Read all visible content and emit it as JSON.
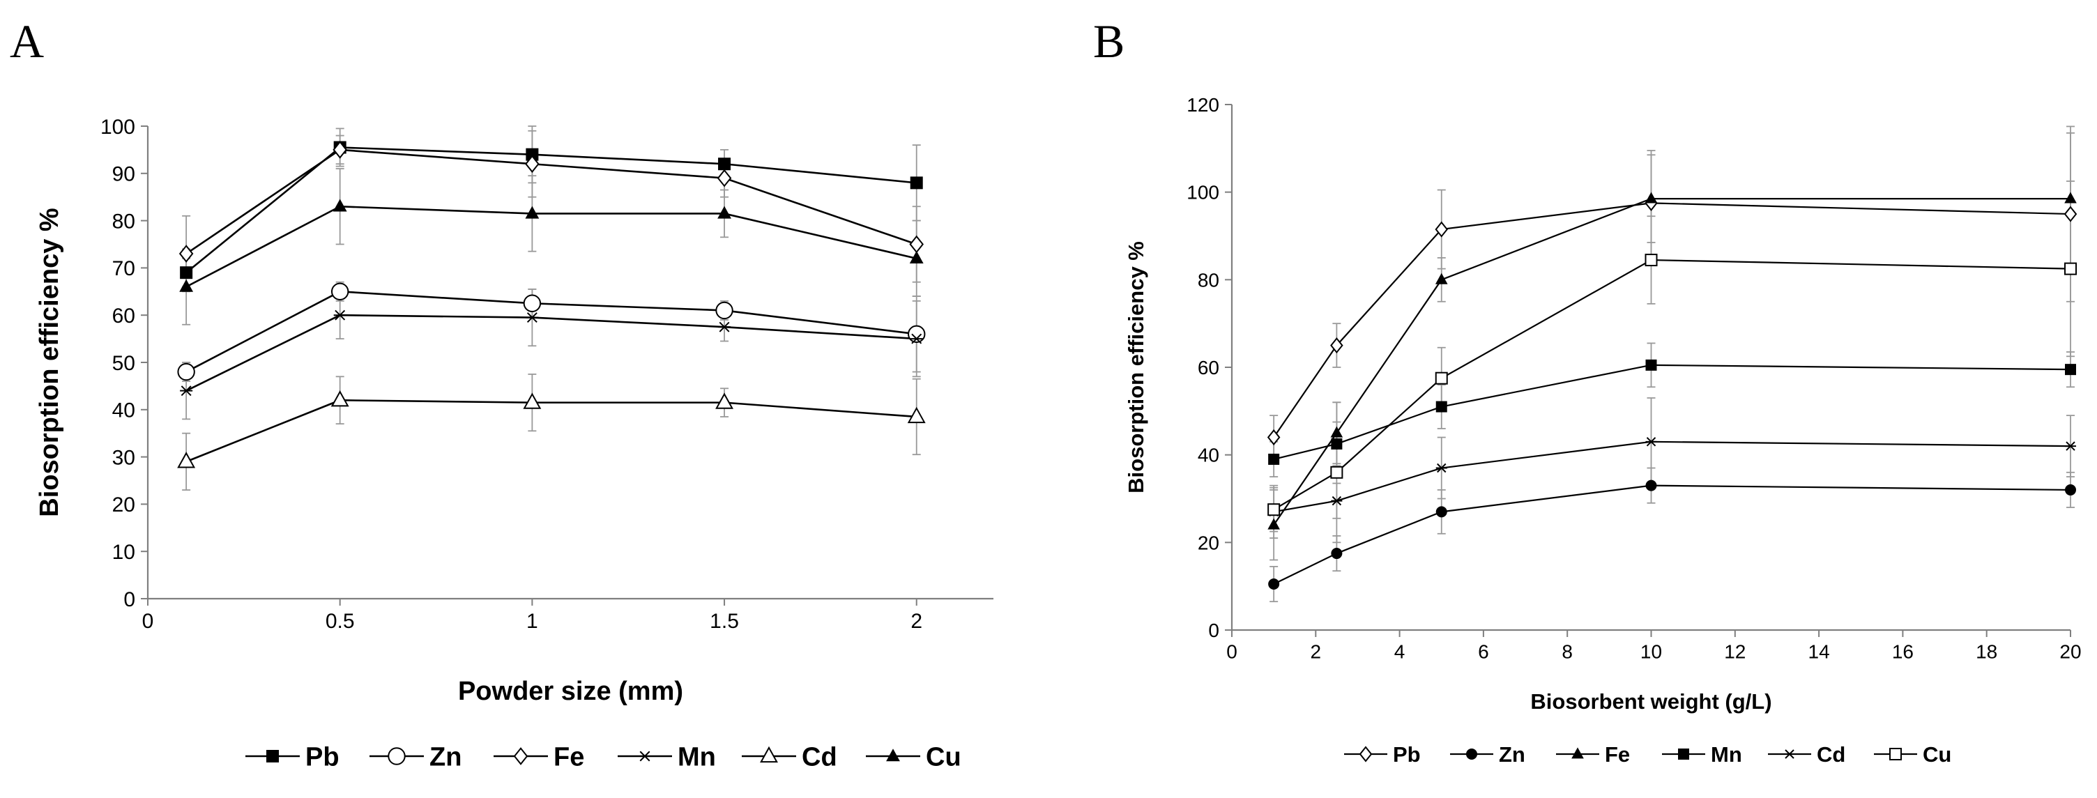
{
  "figure": {
    "panel_a_label": "A",
    "panel_b_label": "B"
  },
  "chart_data": [
    {
      "type": "line",
      "panel": "A",
      "xlabel": "Powder size (mm)",
      "ylabel": "Biosorption  efficiency %",
      "xlim": [
        0,
        2.2
      ],
      "ylim": [
        0,
        100
      ],
      "xticks": [
        0,
        0.5,
        1,
        1.5,
        2
      ],
      "xtick_labels": [
        "0",
        "0.5",
        "1",
        "1.5",
        "2"
      ],
      "yticks": [
        0,
        10,
        20,
        30,
        40,
        50,
        60,
        70,
        80,
        90,
        100
      ],
      "ytick_labels": [
        "0",
        "10",
        "20",
        "30",
        "40",
        "50",
        "60",
        "70",
        "80",
        "90",
        "100"
      ],
      "grid": false,
      "legend_position": "bottom",
      "x": [
        0.1,
        0.5,
        1,
        1.5,
        2
      ],
      "series": [
        {
          "name": "Pb",
          "marker": "square-filled",
          "values": [
            69,
            95.5,
            94,
            92,
            88
          ],
          "errors": [
            3,
            4,
            6,
            3,
            8
          ]
        },
        {
          "name": "Zn",
          "marker": "circle-open",
          "values": [
            48,
            65,
            62.5,
            61,
            56
          ],
          "errors": [
            2,
            2,
            3,
            2,
            8
          ]
        },
        {
          "name": "Fe",
          "marker": "diamond-open",
          "values": [
            73,
            95,
            92,
            89,
            75
          ],
          "errors": [
            8,
            3,
            7,
            4,
            8
          ]
        },
        {
          "name": "Mn",
          "marker": "star",
          "values": [
            44,
            60,
            59.5,
            57.5,
            55
          ],
          "errors": [
            6,
            5,
            6,
            3,
            8
          ]
        },
        {
          "name": "Cd",
          "marker": "triangle-open",
          "values": [
            29,
            42,
            41.5,
            41.5,
            38.5
          ],
          "errors": [
            6,
            5,
            6,
            3,
            8
          ]
        },
        {
          "name": "Cu",
          "marker": "triangle-filled",
          "values": [
            66,
            83,
            81.5,
            81.5,
            72
          ],
          "errors": [
            8,
            8,
            8,
            5,
            8
          ]
        }
      ]
    },
    {
      "type": "line",
      "panel": "B",
      "xlabel": "Biosorbent weight (g/L)",
      "ylabel": "Biosorption efficiency %",
      "xlim": [
        0,
        20
      ],
      "ylim": [
        0,
        120
      ],
      "xticks": [
        0,
        2,
        4,
        6,
        8,
        10,
        12,
        14,
        16,
        18,
        20
      ],
      "xtick_labels": [
        "0",
        "2",
        "4",
        "6",
        "8",
        "10",
        "12",
        "14",
        "16",
        "18",
        "20"
      ],
      "yticks": [
        0,
        20,
        40,
        60,
        80,
        100,
        120
      ],
      "ytick_labels": [
        "0",
        "20",
        "40",
        "60",
        "80",
        "100",
        "120"
      ],
      "grid": false,
      "legend_position": "bottom",
      "x": [
        1,
        2.5,
        5,
        10,
        20
      ],
      "series": [
        {
          "name": "Pb",
          "marker": "diamond-open",
          "values": [
            44,
            65,
            91.5,
            97.5,
            95
          ],
          "errors": [
            5,
            5,
            9,
            12,
            20
          ]
        },
        {
          "name": "Zn",
          "marker": "circle-filled",
          "values": [
            10.5,
            17.5,
            27,
            33,
            32
          ],
          "errors": [
            4,
            4,
            5,
            4,
            4
          ]
        },
        {
          "name": "Fe",
          "marker": "triangle-filled",
          "values": [
            24,
            45,
            80,
            98.5,
            98.5
          ],
          "errors": [
            8,
            7,
            5,
            10,
            15
          ]
        },
        {
          "name": "Mn",
          "marker": "square-filled",
          "values": [
            39,
            42.5,
            51,
            60.5,
            59.5
          ],
          "errors": [
            4,
            5,
            5,
            5,
            4
          ]
        },
        {
          "name": "Cd",
          "marker": "star",
          "values": [
            27,
            29.5,
            37,
            43,
            42
          ],
          "errors": [
            6,
            4,
            7,
            10,
            7
          ]
        },
        {
          "name": "Cu",
          "marker": "square-open",
          "values": [
            27.5,
            36,
            57.5,
            84.5,
            82.5
          ],
          "errors": [
            5,
            16,
            7,
            10,
            20
          ]
        }
      ]
    }
  ]
}
